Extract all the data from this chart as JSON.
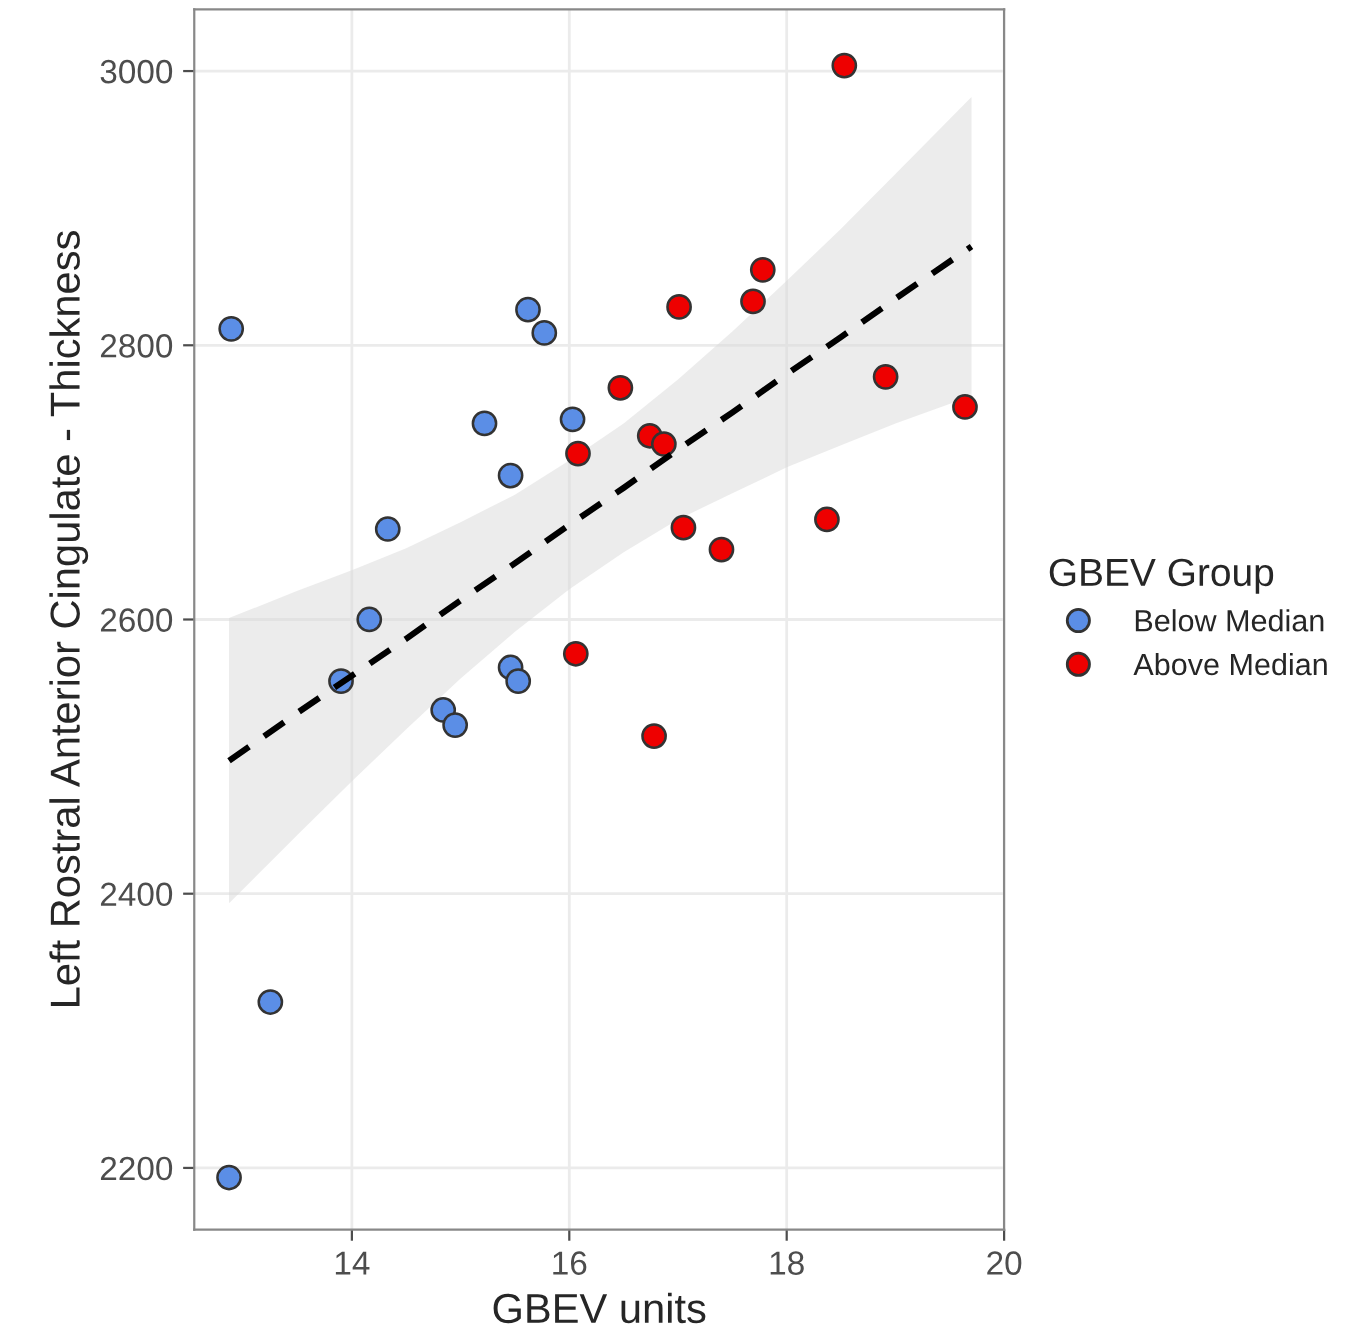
{
  "chart_data": {
    "type": "scatter",
    "xlabel": "GBEV units",
    "ylabel": "Left Rostral Anterior Cingulate - Thickness",
    "legend_title": "GBEV Group",
    "legend": "right",
    "xlim": [
      12.55,
      20.0
    ],
    "ylim": [
      2155,
      3045
    ],
    "xticks": [
      14,
      16,
      18,
      20
    ],
    "yticks": [
      2200,
      2400,
      2600,
      2800,
      3000
    ],
    "grid": true,
    "marker": "circle",
    "series": [
      {
        "name": "Below Median",
        "color": "#5b8ee6",
        "x": [
          12.89,
          13.25,
          12.87,
          14.33,
          14.16,
          13.9,
          14.84,
          14.95,
          15.22,
          15.46,
          15.46,
          15.53,
          15.62,
          15.77,
          16.03
        ],
        "values": [
          2812,
          2321,
          2193,
          2666,
          2600,
          2555,
          2534,
          2523,
          2743,
          2705,
          2565,
          2555,
          2826,
          2809,
          2746
        ]
      },
      {
        "name": "Above Median",
        "color": "#ee0000",
        "x": [
          16.08,
          16.06,
          16.47,
          16.74,
          16.87,
          16.78,
          17.01,
          17.05,
          17.4,
          17.69,
          17.78,
          18.37,
          18.53,
          18.91,
          19.64
        ],
        "values": [
          2721,
          2575,
          2769,
          2734,
          2728,
          2515,
          2828,
          2667,
          2651,
          2832,
          2855,
          2673,
          3004,
          2777,
          2755
        ]
      },
      {
        "type": "line",
        "color": "#000000",
        "line_style": "dashed",
        "marker": "none",
        "x": [
          12.87,
          13.5,
          14,
          14.5,
          15,
          15.5,
          16,
          16.5,
          17,
          17.5,
          18,
          18.5,
          19,
          19.7
        ],
        "values": [
          2497,
          2532,
          2559,
          2586,
          2614,
          2641,
          2669,
          2696,
          2724,
          2751,
          2779,
          2806,
          2834,
          2872
        ],
        "lower": [
          2393,
          2443,
          2482,
          2520,
          2557,
          2591,
          2622,
          2649,
          2673,
          2692,
          2711,
          2727,
          2743,
          2763
        ],
        "upper": [
          2601,
          2621,
          2636,
          2652,
          2671,
          2691,
          2716,
          2743,
          2775,
          2810,
          2847,
          2885,
          2925,
          2981
        ]
      }
    ]
  }
}
